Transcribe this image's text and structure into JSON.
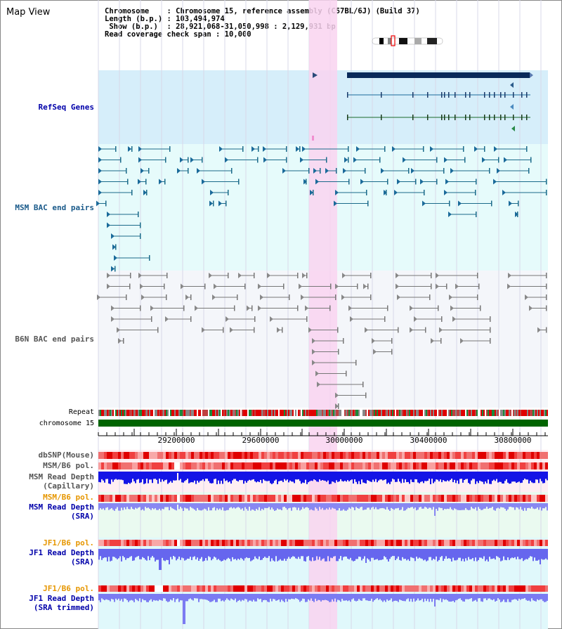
{
  "header": {
    "title": "Map View",
    "info_lines": [
      "Chromosome    : Chromosome 15, reference assembly (C57BL/6J) (Build 37)",
      "Length (b.p.) : 103,494,974",
      " Show (b.p.)  : 28,921,068-31,050,998 : 2,129,931 bp",
      "Read coverage check span : 10,000"
    ]
  },
  "tracks": {
    "refseq": "RefSeq Genes",
    "msm_bac": "MSM BAC end pairs",
    "b6n_bac": "B6N BAC end pairs",
    "repeat": "Repeat",
    "chromosome": "chromosome 15",
    "dbsnp": "dbSNP(Mouse)",
    "msm_pol": "MSM/B6 pol.",
    "msm_depth_cap_1": "MSM Read Depth",
    "msm_depth_cap_2": "(Capillary)",
    "msm_pol_sra": "MSM/B6 pol.",
    "msm_depth_sra_1": "MSM Read Depth",
    "msm_depth_sra_2": "(SRA)",
    "jf1_pol": "JF1/B6 pol.",
    "jf1_depth_1": "JF1 Read Depth",
    "jf1_depth_2": "(SRA)",
    "jf1_pol_t": "JF1/B6 pol.",
    "jf1_trim_1": "JF1 Read Depth",
    "jf1_trim_2": "(SRA trimmed)"
  },
  "axis": {
    "ticks": [
      "29200000",
      "29600000",
      "30000000",
      "30400000",
      "30800000"
    ]
  },
  "colors": {
    "refseq_bg": "#d6eefa",
    "msm_bg": "#e6fbfb",
    "b6n_bg": "#f4f6fa",
    "highlight": "#f9d3f0",
    "chromosome_bar": "#006400",
    "depth_dark": "#1414e6",
    "depth_light": "#7b7bf2",
    "label_blue": "#0000aa",
    "label_orange": "#e69600",
    "label_gray": "#555555"
  }
}
